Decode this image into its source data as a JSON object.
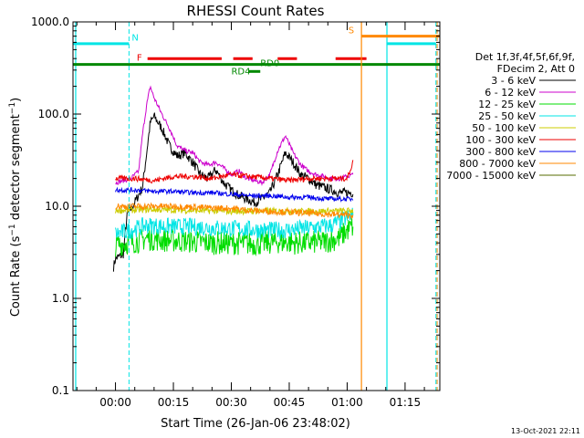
{
  "chart_data": {
    "type": "line",
    "title": "RHESSI Count Rates",
    "xlabel": "Start Time (26-Jan-06 23:48:02)",
    "ylabel": "Count Rate (s-1 detector segment-1)",
    "yscale": "log",
    "ylim": [
      0.1,
      1000
    ],
    "xlim_minutes": [
      -11,
      84
    ],
    "x_ticks": [
      {
        "label": "00:00",
        "value": 0
      },
      {
        "label": "00:15",
        "value": 15
      },
      {
        "label": "00:30",
        "value": 30
      },
      {
        "label": "00:45",
        "value": 45
      },
      {
        "label": "01:00",
        "value": 60
      },
      {
        "label": "01:15",
        "value": 75
      }
    ],
    "y_ticks": [
      {
        "label": "1000.0",
        "value": 1000
      },
      {
        "label": "100.0",
        "value": 100
      },
      {
        "label": "10.0",
        "value": 10
      },
      {
        "label": "1.0",
        "value": 1
      },
      {
        "label": "0.1",
        "value": 0.1
      }
    ],
    "legend_header": [
      "Det 1f,3f,4f,5f,6f,9f,",
      "FDecim 2, Att 0"
    ],
    "series": [
      {
        "name": "3 - 6 keV",
        "color": "#000000",
        "points": [
          [
            -0.5,
            2.2
          ],
          [
            0,
            2.7
          ],
          [
            2,
            3.0
          ],
          [
            3,
            8
          ],
          [
            5,
            11
          ],
          [
            7,
            16
          ],
          [
            9,
            80
          ],
          [
            10,
            95
          ],
          [
            12,
            70
          ],
          [
            14,
            45
          ],
          [
            16,
            35
          ],
          [
            18,
            38
          ],
          [
            20,
            30
          ],
          [
            22,
            22
          ],
          [
            24,
            20
          ],
          [
            26,
            25
          ],
          [
            28,
            18
          ],
          [
            30,
            15
          ],
          [
            32,
            13
          ],
          [
            34,
            12
          ],
          [
            36,
            11
          ],
          [
            38,
            12
          ],
          [
            40,
            14
          ],
          [
            42,
            22
          ],
          [
            44,
            38
          ],
          [
            46,
            30
          ],
          [
            48,
            22
          ],
          [
            50,
            20
          ],
          [
            52,
            17
          ],
          [
            54,
            16
          ],
          [
            56,
            15
          ],
          [
            58,
            14
          ],
          [
            60,
            14
          ],
          [
            61.5,
            14
          ]
        ]
      },
      {
        "name": "6 - 12 keV",
        "color": "#cc00cc",
        "points": [
          [
            0,
            18
          ],
          [
            4,
            20
          ],
          [
            6,
            24
          ],
          [
            7,
            60
          ],
          [
            8,
            120
          ],
          [
            9,
            200
          ],
          [
            10,
            150
          ],
          [
            12,
            100
          ],
          [
            14,
            70
          ],
          [
            16,
            45
          ],
          [
            18,
            40
          ],
          [
            20,
            38
          ],
          [
            22,
            30
          ],
          [
            24,
            28
          ],
          [
            26,
            30
          ],
          [
            28,
            26
          ],
          [
            30,
            22
          ],
          [
            32,
            24
          ],
          [
            34,
            20
          ],
          [
            36,
            19
          ],
          [
            38,
            18
          ],
          [
            40,
            22
          ],
          [
            42,
            40
          ],
          [
            44,
            58
          ],
          [
            46,
            38
          ],
          [
            48,
            28
          ],
          [
            50,
            24
          ],
          [
            52,
            22
          ],
          [
            54,
            21
          ],
          [
            56,
            20
          ],
          [
            58,
            20
          ],
          [
            60,
            21
          ],
          [
            61.5,
            22
          ]
        ]
      },
      {
        "name": "12 - 25 keV",
        "color": "#00dd00",
        "points": [
          [
            0,
            3.8
          ],
          [
            3,
            4.0
          ],
          [
            6,
            4.2
          ],
          [
            8,
            4.5
          ],
          [
            12,
            4.3
          ],
          [
            18,
            4.2
          ],
          [
            24,
            4.0
          ],
          [
            30,
            4.0
          ],
          [
            36,
            3.9
          ],
          [
            42,
            4.1
          ],
          [
            48,
            4.0
          ],
          [
            54,
            4.1
          ],
          [
            58,
            4.5
          ],
          [
            60,
            5.5
          ],
          [
            61.5,
            6.0
          ]
        ]
      },
      {
        "name": "25 - 50 keV",
        "color": "#00e5e5",
        "points": [
          [
            0,
            5.0
          ],
          [
            4,
            5.5
          ],
          [
            8,
            6.2
          ],
          [
            14,
            6.0
          ],
          [
            20,
            6.0
          ],
          [
            26,
            5.8
          ],
          [
            32,
            5.7
          ],
          [
            38,
            5.5
          ],
          [
            44,
            5.5
          ],
          [
            50,
            5.8
          ],
          [
            56,
            6.2
          ],
          [
            60,
            7.5
          ],
          [
            61.5,
            8.0
          ]
        ]
      },
      {
        "name": "50 - 100 keV",
        "color": "#cccc00",
        "points": [
          [
            0,
            9.0
          ],
          [
            10,
            9.2
          ],
          [
            20,
            9.0
          ],
          [
            30,
            8.8
          ],
          [
            40,
            8.9
          ],
          [
            50,
            8.8
          ],
          [
            60,
            8.9
          ],
          [
            61.5,
            9.0
          ]
        ]
      },
      {
        "name": "100 - 300 keV",
        "color": "#ee0000",
        "points": [
          [
            0,
            20
          ],
          [
            5,
            20
          ],
          [
            10,
            19
          ],
          [
            15,
            21
          ],
          [
            20,
            21
          ],
          [
            25,
            20
          ],
          [
            30,
            22
          ],
          [
            35,
            21
          ],
          [
            40,
            20
          ],
          [
            45,
            19
          ],
          [
            50,
            20
          ],
          [
            55,
            20
          ],
          [
            60,
            20
          ],
          [
            61.5,
            30
          ]
        ]
      },
      {
        "name": "300 - 800 keV",
        "color": "#0000ee",
        "points": [
          [
            0,
            15
          ],
          [
            5,
            15
          ],
          [
            10,
            14.5
          ],
          [
            15,
            14.5
          ],
          [
            20,
            14
          ],
          [
            25,
            14
          ],
          [
            30,
            13.5
          ],
          [
            35,
            13
          ],
          [
            40,
            13
          ],
          [
            45,
            12.5
          ],
          [
            50,
            12.5
          ],
          [
            55,
            12
          ],
          [
            60,
            12
          ],
          [
            61.5,
            12
          ]
        ]
      },
      {
        "name": "800 - 7000 keV",
        "color": "#ff8800",
        "points": [
          [
            0,
            10
          ],
          [
            5,
            10
          ],
          [
            10,
            10
          ],
          [
            15,
            10
          ],
          [
            20,
            9.8
          ],
          [
            25,
            9.6
          ],
          [
            30,
            9.5
          ],
          [
            35,
            9
          ],
          [
            40,
            8.8
          ],
          [
            45,
            8.6
          ],
          [
            50,
            8.4
          ],
          [
            55,
            8.2
          ],
          [
            60,
            8.0
          ],
          [
            61.5,
            8.0
          ]
        ]
      },
      {
        "name": "7000 - 15000 keV",
        "color": "#556b00",
        "points": []
      }
    ],
    "flags": [
      {
        "label": "N",
        "color": "#00e5e5"
      },
      {
        "label": "F",
        "color": "#ee0000"
      },
      {
        "label": "RD0",
        "color": "#008800"
      },
      {
        "label": "RD4",
        "color": "#008800"
      },
      {
        "label": "S",
        "color": "#ff8800"
      }
    ]
  },
  "footer": {
    "date": "13-Oct-2021 22:11"
  }
}
